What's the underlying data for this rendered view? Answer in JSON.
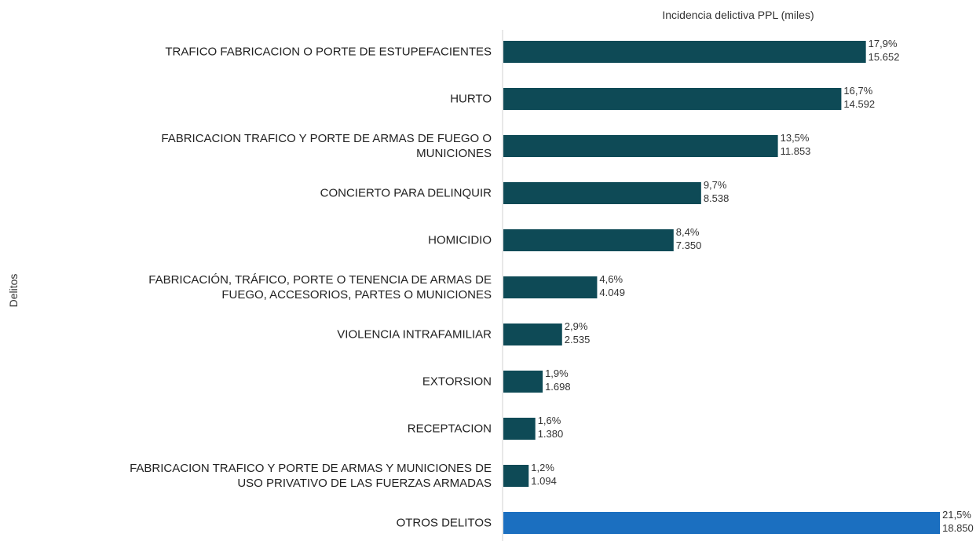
{
  "chart_data": {
    "type": "bar",
    "orientation": "horizontal",
    "title": "Incidencia delictiva PPL (miles)",
    "y_label": "Delitos",
    "categories": [
      "TRAFICO FABRICACION O PORTE DE ESTUPEFACIENTES",
      "HURTO",
      "FABRICACION TRAFICO Y PORTE DE ARMAS DE FUEGO O\nMUNICIONES",
      "CONCIERTO PARA DELINQUIR",
      "HOMICIDIO",
      "FABRICACIÓN, TRÁFICO, PORTE O TENENCIA DE ARMAS DE\nFUEGO, ACCESORIOS, PARTES O MUNICIONES",
      "VIOLENCIA INTRAFAMILIAR",
      "EXTORSION",
      "RECEPTACION",
      "FABRICACION  TRAFICO Y PORTE DE ARMAS Y MUNICIONES DE\nUSO PRIVATIVO DE LAS FUERZAS ARMADAS",
      "OTROS DELITOS"
    ],
    "values": [
      15652,
      14592,
      11853,
      8538,
      7350,
      4049,
      2535,
      1698,
      1380,
      1094,
      18850
    ],
    "value_labels": [
      "15.652",
      "14.592",
      "11.853",
      "8.538",
      "7.350",
      "4.049",
      "2.535",
      "1.698",
      "1.380",
      "1.094",
      "18.850"
    ],
    "shares": [
      17.9,
      16.7,
      13.5,
      9.7,
      8.4,
      4.6,
      2.9,
      1.9,
      1.6,
      1.2,
      21.5
    ],
    "share_labels": [
      "17,9%",
      "16,7%",
      "13,5%",
      "9,7%",
      "8,4%",
      "4,6%",
      "2,9%",
      "1,9%",
      "1,6%",
      "1,2%",
      "21,5%"
    ],
    "colors": [
      "#0e4a56",
      "#0e4a56",
      "#0e4a56",
      "#0e4a56",
      "#0e4a56",
      "#0e4a56",
      "#0e4a56",
      "#0e4a56",
      "#0e4a56",
      "#0e4a56",
      "#1b6fc0"
    ]
  }
}
